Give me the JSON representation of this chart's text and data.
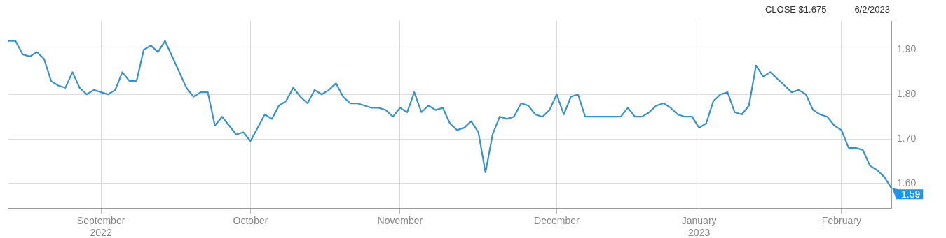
{
  "chart_data": {
    "type": "line",
    "categories": [
      null,
      null,
      null,
      null,
      null,
      null,
      null,
      null,
      null,
      null,
      null,
      null,
      null,
      "September\n2022",
      null,
      null,
      null,
      null,
      null,
      null,
      null,
      null,
      null,
      null,
      null,
      null,
      null,
      null,
      null,
      null,
      null,
      null,
      null,
      null,
      "October",
      null,
      null,
      null,
      null,
      null,
      null,
      null,
      null,
      null,
      null,
      null,
      null,
      null,
      null,
      null,
      null,
      null,
      null,
      null,
      null,
      "November",
      null,
      null,
      null,
      null,
      null,
      null,
      null,
      null,
      null,
      null,
      null,
      null,
      null,
      null,
      null,
      null,
      null,
      null,
      null,
      null,
      null,
      "December",
      null,
      null,
      null,
      null,
      null,
      null,
      null,
      null,
      null,
      null,
      null,
      null,
      null,
      null,
      null,
      null,
      null,
      null,
      null,
      "January\n2023",
      null,
      null,
      null,
      null,
      null,
      null,
      null,
      null,
      null,
      null,
      null,
      null,
      null,
      null,
      null,
      null,
      null,
      null,
      null,
      "February",
      null,
      null,
      null,
      null,
      null,
      null,
      null
    ],
    "series": [
      {
        "color": "#3b92c6",
        "values": [
          1.92,
          1.92,
          1.89,
          1.885,
          1.895,
          1.88,
          1.83,
          1.82,
          1.815,
          1.85,
          1.815,
          1.8,
          1.81,
          1.805,
          1.8,
          1.81,
          1.85,
          1.83,
          1.83,
          1.9,
          1.91,
          1.895,
          1.92,
          1.885,
          1.85,
          1.815,
          1.795,
          1.805,
          1.805,
          1.73,
          1.75,
          1.73,
          1.71,
          1.715,
          1.695,
          1.725,
          1.755,
          1.745,
          1.775,
          1.785,
          1.815,
          1.795,
          1.78,
          1.81,
          1.8,
          1.81,
          1.825,
          1.795,
          1.78,
          1.78,
          1.775,
          1.77,
          1.77,
          1.765,
          1.75,
          1.77,
          1.76,
          1.805,
          1.76,
          1.775,
          1.765,
          1.77,
          1.735,
          1.72,
          1.725,
          1.74,
          1.715,
          1.625,
          1.71,
          1.75,
          1.745,
          1.75,
          1.78,
          1.775,
          1.755,
          1.75,
          1.765,
          1.8,
          1.755,
          1.795,
          1.8,
          1.75,
          1.75,
          1.75,
          1.75,
          1.75,
          1.75,
          1.77,
          1.75,
          1.75,
          1.76,
          1.775,
          1.78,
          1.77,
          1.755,
          1.75,
          1.75,
          1.725,
          1.735,
          1.785,
          1.8,
          1.805,
          1.76,
          1.755,
          1.775,
          1.865,
          1.84,
          1.85,
          1.835,
          1.82,
          1.805,
          1.81,
          1.8,
          1.765,
          1.755,
          1.75,
          1.73,
          1.72,
          1.68,
          1.68,
          1.675,
          1.64,
          1.63,
          1.615,
          1.59
        ],
        "value_labels": [
          null,
          null,
          null,
          null,
          null,
          null,
          null,
          null,
          null,
          null,
          null,
          null,
          null,
          null,
          null,
          null,
          null,
          null,
          null,
          null,
          null,
          null,
          null,
          null,
          null,
          null,
          null,
          null,
          null,
          null,
          null,
          null,
          null,
          null,
          null,
          null,
          null,
          null,
          null,
          null,
          null,
          null,
          null,
          null,
          null,
          null,
          null,
          null,
          null,
          null,
          null,
          null,
          null,
          null,
          null,
          null,
          null,
          null,
          null,
          null,
          null,
          null,
          null,
          null,
          null,
          null,
          null,
          null,
          null,
          null,
          null,
          null,
          null,
          null,
          null,
          null,
          null,
          null,
          null,
          null,
          null,
          null,
          null,
          null,
          null,
          null,
          null,
          null,
          null,
          null,
          null,
          null,
          null,
          null,
          null,
          null,
          null,
          null,
          null,
          null,
          null,
          null,
          null,
          null,
          null,
          null,
          null,
          null,
          null,
          null,
          null,
          null,
          null,
          null,
          null,
          null,
          null,
          null,
          null,
          null,
          null,
          null,
          null,
          null,
          "1.59"
        ]
      }
    ],
    "ylim": [
      1.545,
      1.965
    ],
    "yticks": [
      {
        "value": 1.6,
        "label": "1.60"
      },
      {
        "value": 1.7,
        "label": "1.70"
      },
      {
        "value": 1.8,
        "label": "1.80"
      },
      {
        "value": 1.9,
        "label": "1.90"
      }
    ],
    "grid": true,
    "marker": "none",
    "line_style": "solid",
    "legend": false,
    "annotations": [
      "CLOSE $1.675",
      "6/2/2023"
    ]
  }
}
